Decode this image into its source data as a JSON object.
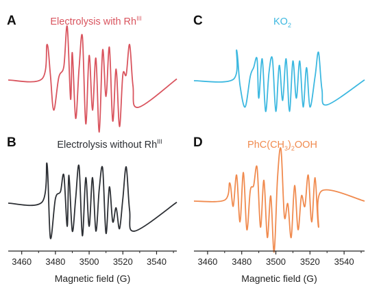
{
  "chart_data": [
    {
      "type": "line",
      "panel_label": "A",
      "title": "Electrolysis with Rh",
      "title_superscript": "III",
      "color": "#d9545e",
      "xlabel": "",
      "x_ticks": [],
      "xlim": [
        3450,
        3550
      ],
      "ylim": [
        -1,
        1
      ],
      "series": [
        {
          "x": [
            3450,
            3470,
            3473,
            3475,
            3477,
            3480,
            3483,
            3485,
            3487,
            3488,
            3490,
            3492,
            3494,
            3496,
            3498,
            3500,
            3502,
            3504,
            3506,
            3508,
            3510,
            3512,
            3514,
            3516,
            3518,
            3520,
            3522,
            3524,
            3527,
            3550
          ],
          "y": [
            0.0,
            0.02,
            0.65,
            0.1,
            -0.55,
            0.05,
            0.25,
            0.98,
            -0.35,
            0.5,
            -0.7,
            0.2,
            0.8,
            -0.8,
            0.45,
            -0.55,
            0.4,
            -0.95,
            0.55,
            -0.3,
            0.6,
            -0.75,
            0.2,
            -0.85,
            0.1,
            0.1,
            0.65,
            -0.1,
            -0.5,
            0.02
          ]
        }
      ]
    },
    {
      "type": "line",
      "panel_label": "B",
      "title": "Electrolysis without Rh",
      "title_superscript": "III",
      "color": "#2b2e33",
      "xlabel": "Magnetic field (G)",
      "x_ticks": [
        3460,
        3480,
        3500,
        3520,
        3540
      ],
      "xlim": [
        3452,
        3552
      ],
      "ylim": [
        -1,
        1
      ],
      "series": [
        {
          "x": [
            3452,
            3472,
            3475,
            3477,
            3480,
            3483,
            3485,
            3487,
            3488,
            3490,
            3492,
            3494,
            3496,
            3498,
            3500,
            3502,
            3504,
            3506,
            3508,
            3510,
            3512,
            3514,
            3516,
            3518,
            3520,
            3522,
            3524,
            3527,
            3552
          ],
          "y": [
            0.0,
            0.02,
            0.85,
            -0.75,
            0.1,
            0.25,
            0.6,
            -0.5,
            0.6,
            -0.6,
            0.1,
            0.8,
            -0.7,
            0.55,
            -0.5,
            0.55,
            -0.6,
            0.3,
            0.75,
            -0.65,
            0.35,
            -0.4,
            -0.1,
            -0.55,
            0.1,
            0.78,
            -0.15,
            -0.6,
            0.02
          ]
        }
      ]
    },
    {
      "type": "line",
      "panel_label": "C",
      "title": "KO",
      "title_subscript": "2",
      "color": "#3cb8e0",
      "xlabel": "",
      "x_ticks": [],
      "xlim": [
        3450,
        3550
      ],
      "ylim": [
        -1,
        1
      ],
      "series": [
        {
          "x": [
            3450,
            3473,
            3475,
            3477,
            3480,
            3483,
            3485,
            3487,
            3488,
            3490,
            3492,
            3494,
            3496,
            3498,
            3500,
            3502,
            3504,
            3506,
            3508,
            3510,
            3512,
            3514,
            3516,
            3518,
            3521,
            3523,
            3525,
            3528,
            3550
          ],
          "y": [
            0.0,
            0.03,
            0.7,
            -0.1,
            -0.6,
            0.1,
            0.3,
            0.5,
            -0.4,
            0.5,
            -0.7,
            0.2,
            0.5,
            -0.7,
            0.35,
            -0.45,
            0.5,
            -0.7,
            0.45,
            -0.4,
            0.45,
            -0.6,
            0.3,
            -0.6,
            0.1,
            0.65,
            -0.2,
            -0.55,
            0.02
          ]
        }
      ]
    },
    {
      "type": "line",
      "panel_label": "D",
      "title": "PhC(CH",
      "title_subscript": "3",
      "title_suffix": ")",
      "title_subscript_2": "2",
      "title_tail": "OOH",
      "color": "#f08a4e",
      "xlabel": "Magnetic field (G)",
      "x_ticks": [
        3460,
        3480,
        3500,
        3520,
        3540
      ],
      "xlim": [
        3452,
        3552
      ],
      "ylim": [
        -1,
        1
      ],
      "series": [
        {
          "x": [
            3452,
            3470,
            3473,
            3475,
            3477,
            3479,
            3481,
            3483,
            3485,
            3487,
            3489,
            3491,
            3493,
            3495,
            3497,
            3499,
            3501,
            3503,
            3505,
            3507,
            3509,
            3511,
            3513,
            3515,
            3517,
            3519,
            3521,
            3523,
            3525,
            3527,
            3552
          ],
          "y": [
            0.0,
            0.02,
            0.35,
            -0.1,
            0.5,
            -0.4,
            0.55,
            -0.55,
            0.2,
            0.3,
            0.65,
            -0.5,
            0.4,
            -0.7,
            0.1,
            -0.98,
            0.45,
            1.0,
            -0.3,
            -0.05,
            -0.7,
            0.3,
            -0.55,
            0.1,
            -0.1,
            0.5,
            -0.4,
            0.45,
            -0.5,
            0.2,
            0.0
          ]
        }
      ]
    }
  ]
}
